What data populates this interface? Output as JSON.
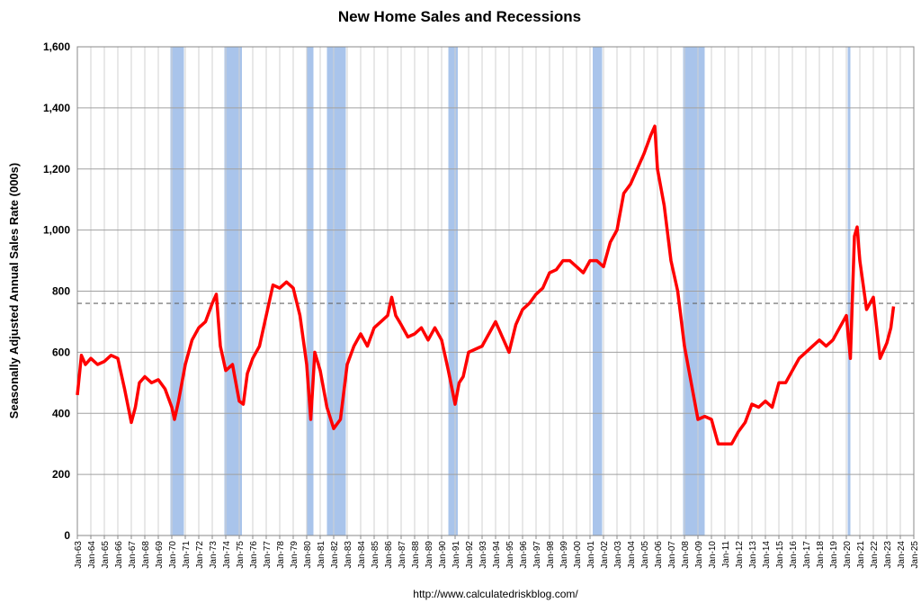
{
  "chart_data": {
    "type": "line",
    "title": "New Home Sales and Recessions",
    "y_label": "Seasonally Adjusted Annual Sales Rate (000s)",
    "source": "http://www.calculatedriskblog.com/",
    "xlim": [
      1963,
      2025
    ],
    "ylim": [
      0,
      1600
    ],
    "yticks": [
      0,
      200,
      400,
      600,
      800,
      {
        "value": 1000,
        "label": "1,000"
      },
      {
        "value": 1200,
        "label": "1,200"
      },
      {
        "value": 1400,
        "label": "1,400"
      },
      {
        "value": 1600,
        "label": "1,600"
      }
    ],
    "xticks": [
      {
        "value": 1963,
        "label": "Jan-63"
      },
      {
        "value": 1964,
        "label": "Jan-64"
      },
      {
        "value": 1965,
        "label": "Jan-65"
      },
      {
        "value": 1966,
        "label": "Jan-66"
      },
      {
        "value": 1967,
        "label": "Jan-67"
      },
      {
        "value": 1968,
        "label": "Jan-68"
      },
      {
        "value": 1969,
        "label": "Jan-69"
      },
      {
        "value": 1970,
        "label": "Jan-70"
      },
      {
        "value": 1971,
        "label": "Jan-71"
      },
      {
        "value": 1972,
        "label": "Jan-72"
      },
      {
        "value": 1973,
        "label": "Jan-73"
      },
      {
        "value": 1974,
        "label": "Jan-74"
      },
      {
        "value": 1975,
        "label": "Jan-75"
      },
      {
        "value": 1976,
        "label": "Jan-76"
      },
      {
        "value": 1977,
        "label": "Jan-77"
      },
      {
        "value": 1978,
        "label": "Jan-78"
      },
      {
        "value": 1979,
        "label": "Jan-79"
      },
      {
        "value": 1980,
        "label": "Jan-80"
      },
      {
        "value": 1981,
        "label": "Jan-81"
      },
      {
        "value": 1982,
        "label": "Jan-82"
      },
      {
        "value": 1983,
        "label": "Jan-83"
      },
      {
        "value": 1984,
        "label": "Jan-84"
      },
      {
        "value": 1985,
        "label": "Jan-85"
      },
      {
        "value": 1986,
        "label": "Jan-86"
      },
      {
        "value": 1987,
        "label": "Jan-87"
      },
      {
        "value": 1988,
        "label": "Jan-88"
      },
      {
        "value": 1989,
        "label": "Jan-89"
      },
      {
        "value": 1990,
        "label": "Jan-90"
      },
      {
        "value": 1991,
        "label": "Jan-91"
      },
      {
        "value": 1992,
        "label": "Jan-92"
      },
      {
        "value": 1993,
        "label": "Jan-93"
      },
      {
        "value": 1994,
        "label": "Jan-94"
      },
      {
        "value": 1995,
        "label": "Jan-95"
      },
      {
        "value": 1996,
        "label": "Jan-96"
      },
      {
        "value": 1997,
        "label": "Jan-97"
      },
      {
        "value": 1998,
        "label": "Jan-98"
      },
      {
        "value": 1999,
        "label": "Jan-99"
      },
      {
        "value": 2000,
        "label": "Jan-00"
      },
      {
        "value": 2001,
        "label": "Jan-01"
      },
      {
        "value": 2002,
        "label": "Jan-02"
      },
      {
        "value": 2003,
        "label": "Jan-03"
      },
      {
        "value": 2004,
        "label": "Jan-04"
      },
      {
        "value": 2005,
        "label": "Jan-05"
      },
      {
        "value": 2006,
        "label": "Jan-06"
      },
      {
        "value": 2007,
        "label": "Jan-07"
      },
      {
        "value": 2008,
        "label": "Jan-08"
      },
      {
        "value": 2009,
        "label": "Jan-09"
      },
      {
        "value": 2010,
        "label": "Jan-10"
      },
      {
        "value": 2011,
        "label": "Jan-11"
      },
      {
        "value": 2012,
        "label": "Jan-12"
      },
      {
        "value": 2013,
        "label": "Jan-13"
      },
      {
        "value": 2014,
        "label": "Jan-14"
      },
      {
        "value": 2015,
        "label": "Jan-15"
      },
      {
        "value": 2016,
        "label": "Jan-16"
      },
      {
        "value": 2017,
        "label": "Jan-17"
      },
      {
        "value": 2018,
        "label": "Jan-18"
      },
      {
        "value": 2019,
        "label": "Jan-19"
      },
      {
        "value": 2020,
        "label": "Jan-20"
      },
      {
        "value": 2021,
        "label": "Jan-21"
      },
      {
        "value": 2022,
        "label": "Jan-22"
      },
      {
        "value": 2023,
        "label": "Jan-23"
      },
      {
        "value": 2024,
        "label": "Jan-24"
      },
      {
        "value": 2025,
        "label": "Jan-25"
      }
    ],
    "grid": true,
    "recession_color": "#a9c4eb",
    "recessions": [
      [
        1969.9,
        1970.9
      ],
      [
        1973.9,
        1975.2
      ],
      [
        1980.0,
        1980.5
      ],
      [
        1981.5,
        1982.9
      ],
      [
        1990.5,
        1991.2
      ],
      [
        2001.2,
        2001.9
      ],
      [
        2007.9,
        2009.5
      ],
      [
        2020.1,
        2020.3
      ]
    ],
    "reference_line": 760,
    "series": [
      {
        "color": "#ff0000",
        "x": [
          1963.0,
          1963.3,
          1963.6,
          1964.0,
          1964.5,
          1965.0,
          1965.5,
          1966.0,
          1966.5,
          1967.0,
          1967.3,
          1967.6,
          1968.0,
          1968.5,
          1969.0,
          1969.5,
          1970.0,
          1970.2,
          1970.5,
          1971.0,
          1971.5,
          1972.0,
          1972.5,
          1973.0,
          1973.3,
          1973.6,
          1974.0,
          1974.5,
          1975.0,
          1975.3,
          1975.6,
          1976.0,
          1976.5,
          1977.0,
          1977.5,
          1978.0,
          1978.5,
          1979.0,
          1979.5,
          1980.0,
          1980.3,
          1980.6,
          1981.0,
          1981.5,
          1982.0,
          1982.5,
          1983.0,
          1983.5,
          1984.0,
          1984.5,
          1985.0,
          1985.5,
          1986.0,
          1986.3,
          1986.6,
          1987.0,
          1987.5,
          1988.0,
          1988.5,
          1989.0,
          1989.5,
          1990.0,
          1990.5,
          1991.0,
          1991.3,
          1991.6,
          1992.0,
          1992.5,
          1993.0,
          1993.5,
          1994.0,
          1994.5,
          1995.0,
          1995.5,
          1996.0,
          1996.5,
          1997.0,
          1997.5,
          1998.0,
          1998.5,
          1999.0,
          1999.5,
          2000.0,
          2000.5,
          2001.0,
          2001.5,
          2002.0,
          2002.5,
          2003.0,
          2003.5,
          2004.0,
          2004.5,
          2005.0,
          2005.5,
          2005.8,
          2006.0,
          2006.5,
          2007.0,
          2007.5,
          2008.0,
          2008.5,
          2009.0,
          2009.5,
          2010.0,
          2010.5,
          2011.0,
          2011.5,
          2012.0,
          2012.5,
          2013.0,
          2013.5,
          2014.0,
          2014.5,
          2015.0,
          2015.5,
          2016.0,
          2016.5,
          2017.0,
          2017.5,
          2018.0,
          2018.5,
          2019.0,
          2019.5,
          2020.0,
          2020.3,
          2020.6,
          2020.8,
          2021.0,
          2021.5,
          2022.0,
          2022.5,
          2023.0,
          2023.3,
          2023.5
        ],
        "values": [
          460,
          590,
          560,
          580,
          560,
          570,
          590,
          580,
          480,
          370,
          420,
          500,
          520,
          500,
          510,
          480,
          420,
          380,
          440,
          560,
          640,
          680,
          700,
          760,
          790,
          620,
          540,
          560,
          440,
          430,
          530,
          580,
          620,
          720,
          820,
          810,
          830,
          810,
          720,
          560,
          380,
          600,
          540,
          420,
          350,
          380,
          560,
          620,
          660,
          620,
          680,
          700,
          720,
          780,
          720,
          690,
          650,
          660,
          680,
          640,
          680,
          640,
          540,
          430,
          500,
          520,
          600,
          610,
          620,
          660,
          700,
          650,
          600,
          690,
          740,
          760,
          790,
          810,
          860,
          870,
          900,
          900,
          880,
          860,
          900,
          900,
          880,
          960,
          1000,
          1120,
          1150,
          1200,
          1250,
          1310,
          1340,
          1200,
          1080,
          900,
          800,
          620,
          500,
          380,
          390,
          380,
          300,
          300,
          300,
          340,
          370,
          430,
          420,
          440,
          420,
          500,
          500,
          540,
          580,
          600,
          620,
          640,
          620,
          640,
          680,
          720,
          580,
          980,
          1010,
          900,
          740,
          780,
          580,
          630,
          680,
          750
        ]
      }
    ]
  }
}
